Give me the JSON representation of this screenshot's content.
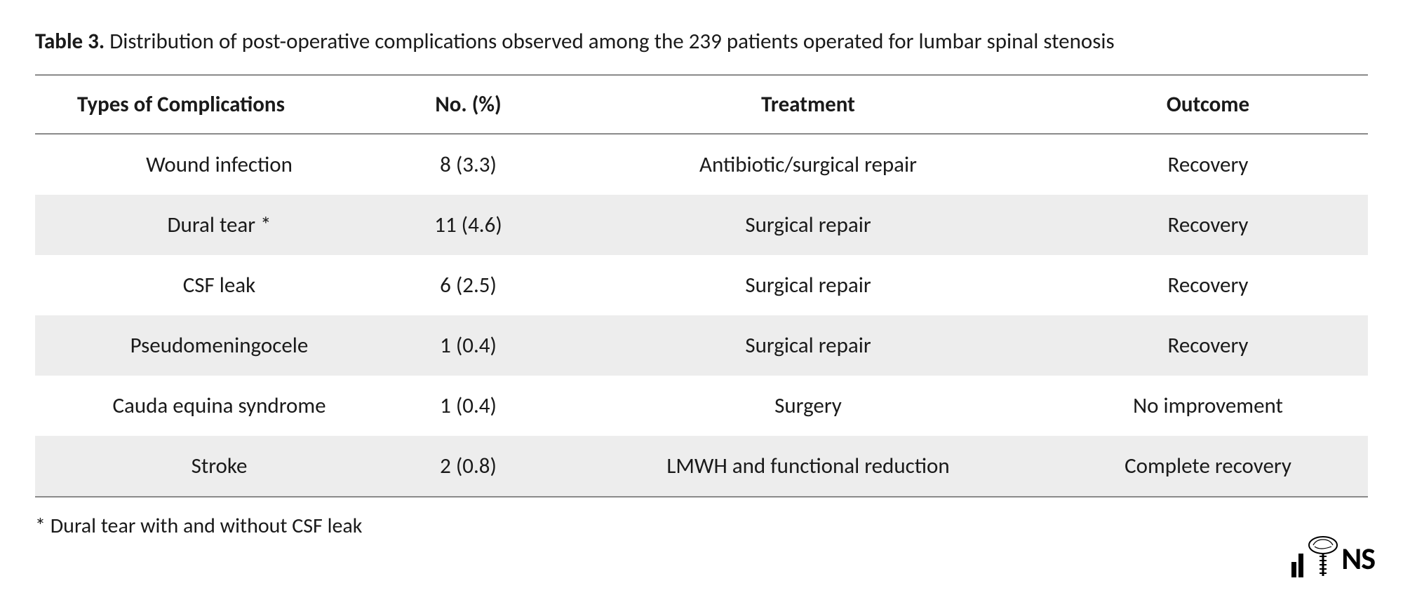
{
  "caption": {
    "label": "Table 3.",
    "text": "Distribution of post-operative complications observed among the 239 patients operated for lumbar spinal stenosis"
  },
  "table": {
    "columns": [
      "Types of Complications",
      "No. (%)",
      "Treatment",
      "Outcome"
    ],
    "column_widths_pct": [
      25,
      15,
      36,
      24
    ],
    "header_border_color": "#8a8a8a",
    "row_alt_bg": "#ededed",
    "row_bg": "#ffffff",
    "rows": [
      {
        "type": "Wound infection",
        "no": "8 (3.3)",
        "treatment": "Antibiotic/surgical repair",
        "outcome": "Recovery"
      },
      {
        "type": "Dural tear *",
        "no": "11 (4.6)",
        "treatment": "Surgical repair",
        "outcome": "Recovery"
      },
      {
        "type": "CSF leak",
        "no": "6 (2.5)",
        "treatment": "Surgical repair",
        "outcome": "Recovery"
      },
      {
        "type": "Pseudomeningocele",
        "no": "1 (0.4)",
        "treatment": "Surgical repair",
        "outcome": "Recovery"
      },
      {
        "type": "Cauda equina syndrome",
        "no": "1 (0.4)",
        "treatment": "Surgery",
        "outcome": "No improvement"
      },
      {
        "type": "Stroke",
        "no": "2 (0.8)",
        "treatment": "LMWH and functional reduction",
        "outcome": "Complete recovery"
      }
    ]
  },
  "footnote": "* Dural tear with and without CSF leak",
  "logo_text": "NS",
  "font_family": "Calibri",
  "title_fontsize_pt": 23,
  "body_fontsize_pt": 23,
  "text_color": "#1a1a1a",
  "background_color": "#ffffff"
}
